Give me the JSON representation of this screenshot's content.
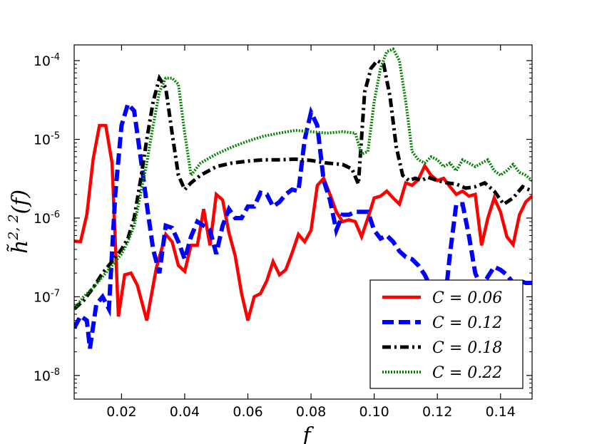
{
  "chart_data": {
    "type": "line",
    "xlabel": "f",
    "ylabel": "h̃",
    "ylabel_sup": "2, 2",
    "ylabel_arg": "(f)",
    "xlim": [
      0.005,
      0.15
    ],
    "ylim_log10": [
      -8.3,
      -3.8
    ],
    "y_scale": "log",
    "grid": false,
    "legend_position": "lower-right",
    "x_ticks": [
      {
        "value": 0.02,
        "label": "0.02"
      },
      {
        "value": 0.04,
        "label": "0.04"
      },
      {
        "value": 0.06,
        "label": "0.06"
      },
      {
        "value": 0.08,
        "label": "0.08"
      },
      {
        "value": 0.1,
        "label": "0.10"
      },
      {
        "value": 0.12,
        "label": "0.12"
      },
      {
        "value": 0.14,
        "label": "0.14"
      }
    ],
    "y_ticks": [
      {
        "exp": -8,
        "base": "10",
        "sup": "-8"
      },
      {
        "exp": -7,
        "base": "10",
        "sup": "-7"
      },
      {
        "exp": -6,
        "base": "10",
        "sup": "-6"
      },
      {
        "exp": -5,
        "base": "10",
        "sup": "-5"
      },
      {
        "exp": -4,
        "base": "10",
        "sup": "-4"
      }
    ],
    "series": [
      {
        "name": "C = 0.06",
        "legend_label": "C = 0.06",
        "color": "#ff0000",
        "style": "solid",
        "x": [
          0.005,
          0.007,
          0.009,
          0.011,
          0.013,
          0.015,
          0.017,
          0.019,
          0.021,
          0.023,
          0.025,
          0.028,
          0.031,
          0.034,
          0.036,
          0.038,
          0.04,
          0.042,
          0.044,
          0.046,
          0.048,
          0.05,
          0.052,
          0.054,
          0.056,
          0.058,
          0.06,
          0.062,
          0.064,
          0.066,
          0.068,
          0.07,
          0.072,
          0.074,
          0.076,
          0.078,
          0.08,
          0.082,
          0.084,
          0.086,
          0.088,
          0.09,
          0.092,
          0.094,
          0.096,
          0.098,
          0.1,
          0.102,
          0.104,
          0.106,
          0.108,
          0.11,
          0.112,
          0.114,
          0.116,
          0.118,
          0.12,
          0.122,
          0.124,
          0.126,
          0.128,
          0.13,
          0.132,
          0.134,
          0.136,
          0.138,
          0.14,
          0.142,
          0.144,
          0.146,
          0.148,
          0.15
        ],
        "y": [
          5.1e-07,
          5e-07,
          1.1e-06,
          5.6e-06,
          1.5e-05,
          1.5e-05,
          5e-06,
          5.6e-08,
          1.9e-07,
          2e-07,
          1.4e-07,
          5e-08,
          2.3e-07,
          6.2e-07,
          5e-07,
          2.5e-07,
          2.1e-07,
          4.5e-07,
          4.5e-07,
          1.3e-06,
          4.5e-07,
          2e-06,
          1.7e-06,
          6.5e-07,
          3.3e-07,
          1.1e-07,
          5e-08,
          1e-07,
          1.1e-07,
          1.6e-07,
          2.8e-07,
          1.9e-07,
          2.2e-07,
          3.6e-07,
          6.2e-07,
          5e-07,
          7e-07,
          2.6e-06,
          3.2e-06,
          2e-06,
          1.2e-06,
          9e-07,
          9.5e-07,
          9e-07,
          5.8e-07,
          1e-06,
          1.8e-06,
          1.9e-06,
          2.2e-06,
          1.8e-06,
          1.5e-06,
          2.8e-06,
          2.6e-06,
          3.1e-06,
          4.6e-06,
          3.5e-06,
          3e-06,
          3.2e-06,
          2.5e-06,
          2e-06,
          2.2e-06,
          1.9e-06,
          2e-06,
          4.5e-07,
          1e-06,
          1.8e-06,
          1.2e-06,
          5.8e-07,
          4.6e-07,
          1.1e-06,
          1.6e-06,
          1.9e-06
        ]
      },
      {
        "name": "C = 0.12",
        "legend_label": "C = 0.12",
        "color": "#0000ff",
        "style": "dashed",
        "x": [
          0.005,
          0.007,
          0.009,
          0.01,
          0.012,
          0.014,
          0.016,
          0.018,
          0.02,
          0.022,
          0.024,
          0.026,
          0.028,
          0.03,
          0.032,
          0.034,
          0.036,
          0.038,
          0.04,
          0.042,
          0.044,
          0.046,
          0.048,
          0.05,
          0.052,
          0.054,
          0.056,
          0.058,
          0.06,
          0.062,
          0.064,
          0.066,
          0.068,
          0.07,
          0.072,
          0.074,
          0.076,
          0.078,
          0.08,
          0.082,
          0.084,
          0.086,
          0.088,
          0.09,
          0.092,
          0.094,
          0.096,
          0.098,
          0.1,
          0.102,
          0.104,
          0.106,
          0.108,
          0.11,
          0.112,
          0.114,
          0.116,
          0.118,
          0.12,
          0.122,
          0.124,
          0.126,
          0.128,
          0.13,
          0.132,
          0.134,
          0.136,
          0.138,
          0.14,
          0.142,
          0.144,
          0.146,
          0.148,
          0.15
        ],
        "y": [
          4e-08,
          5.7e-08,
          5e-08,
          2.2e-08,
          8e-08,
          1e-07,
          7e-08,
          2e-06,
          1.5e-05,
          2.8e-05,
          2.3e-05,
          6e-06,
          1.5e-06,
          4e-07,
          2e-07,
          8e-07,
          7.5e-07,
          5e-07,
          3e-07,
          5.8e-07,
          9e-07,
          8e-07,
          7e-07,
          3.5e-07,
          8e-07,
          1.3e-06,
          1e-06,
          1e-06,
          1.4e-06,
          1.4e-06,
          2.1e-06,
          2e-06,
          1.4e-06,
          1.6e-06,
          2e-06,
          2.3e-06,
          2.2e-06,
          1e-05,
          2.2e-05,
          1.5e-05,
          3e-06,
          1.7e-06,
          7e-07,
          1.1e-06,
          1.1e-06,
          1.2e-06,
          1.2e-06,
          1.2e-06,
          7e-07,
          5.5e-07,
          6e-07,
          5e-07,
          3.8e-07,
          3.2e-07,
          3e-07,
          2.5e-07,
          1.9e-07,
          1.3e-07,
          8e-08,
          6e-08,
          3.5e-07,
          1.5e-06,
          1.5e-06,
          6e-07,
          2e-07,
          1.3e-07,
          1.8e-07,
          2.4e-07,
          2.2e-07,
          1.9e-07,
          1.5e-07,
          1.6e-07,
          1.5e-07,
          1.5e-07
        ]
      },
      {
        "name": "C = 0.18",
        "legend_label": "C = 0.18",
        "color": "#000000",
        "style": "dashdot",
        "x": [
          0.005,
          0.008,
          0.011,
          0.014,
          0.017,
          0.02,
          0.022,
          0.024,
          0.026,
          0.028,
          0.03,
          0.032,
          0.034,
          0.036,
          0.038,
          0.04,
          0.042,
          0.045,
          0.05,
          0.055,
          0.06,
          0.065,
          0.07,
          0.075,
          0.08,
          0.085,
          0.09,
          0.093,
          0.095,
          0.097,
          0.099,
          0.101,
          0.103,
          0.105,
          0.107,
          0.109,
          0.111,
          0.113,
          0.115,
          0.117,
          0.12,
          0.123,
          0.126,
          0.129,
          0.132,
          0.135,
          0.138,
          0.141,
          0.144,
          0.147,
          0.15
        ],
        "y": [
          7e-08,
          9e-08,
          1.3e-07,
          2e-07,
          2.8e-07,
          4e-07,
          5.5e-07,
          1e-06,
          3e-06,
          1e-05,
          3e-05,
          6e-05,
          4.5e-05,
          1.2e-05,
          3.5e-06,
          2.3e-06,
          2.8e-06,
          3.5e-06,
          4.5e-06,
          5e-06,
          5.3e-06,
          5.5e-06,
          5.5e-06,
          5.6e-06,
          5.4e-06,
          5e-06,
          4.8e-06,
          4.2e-06,
          2.7e-06,
          4e-05,
          8e-05,
          0.0001,
          9e-05,
          3.5e-05,
          8e-06,
          3.5e-06,
          3e-06,
          3.2e-06,
          3e-06,
          3.3e-06,
          3e-06,
          2.8e-06,
          2.7e-06,
          2.4e-06,
          2.5e-06,
          2.8e-06,
          2.2e-06,
          1.5e-06,
          1.8e-06,
          2.5e-06,
          2.2e-06
        ]
      },
      {
        "name": "C = 0.22",
        "legend_label": "C = 0.22",
        "color": "#008000",
        "style": "dotted",
        "x": [
          0.005,
          0.008,
          0.011,
          0.014,
          0.017,
          0.02,
          0.022,
          0.024,
          0.026,
          0.028,
          0.03,
          0.032,
          0.034,
          0.036,
          0.038,
          0.04,
          0.042,
          0.045,
          0.05,
          0.055,
          0.06,
          0.065,
          0.07,
          0.075,
          0.08,
          0.085,
          0.09,
          0.094,
          0.096,
          0.098,
          0.1,
          0.102,
          0.104,
          0.106,
          0.108,
          0.11,
          0.112,
          0.114,
          0.116,
          0.118,
          0.12,
          0.122,
          0.124,
          0.126,
          0.128,
          0.13,
          0.132,
          0.134,
          0.136,
          0.138,
          0.14,
          0.142,
          0.144,
          0.146,
          0.148,
          0.15
        ],
        "y": [
          7e-08,
          1e-07,
          1.3e-07,
          1.8e-07,
          2.5e-07,
          3.5e-07,
          5e-07,
          8e-07,
          2e-06,
          5e-06,
          1.5e-05,
          4e-05,
          6e-05,
          6e-05,
          5e-05,
          1.2e-05,
          3.5e-06,
          5e-06,
          6.5e-06,
          8e-06,
          9.5e-06,
          1.1e-05,
          1.2e-05,
          1.3e-05,
          1.25e-05,
          1.2e-05,
          1.25e-05,
          1.2e-05,
          6.5e-06,
          7e-06,
          3e-05,
          8e-05,
          0.00013,
          0.00014,
          0.0001,
          3e-05,
          7e-06,
          5.5e-06,
          5e-06,
          6e-06,
          5.5e-06,
          4.5e-06,
          5e-06,
          4e-06,
          5.5e-06,
          5e-06,
          4.5e-06,
          5e-06,
          5.5e-06,
          4e-06,
          3.5e-06,
          4e-06,
          4.8e-06,
          3.8e-06,
          3.5e-06,
          3e-06
        ]
      }
    ]
  }
}
